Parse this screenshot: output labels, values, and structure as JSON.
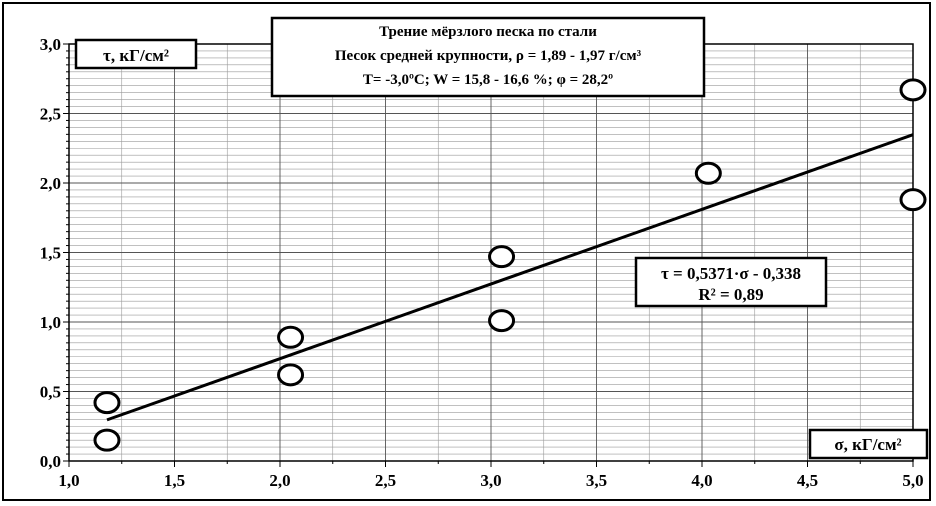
{
  "chart_data": {
    "type": "scatter",
    "title": "Трение мёрзлого песка по стали",
    "subtitle_line1": "Песок средней крупности, ρ = 1,89 - 1,97 г/см³",
    "subtitle_line2": "T= -3,0ºC; W = 15,8 - 16,6 %; φ = 28,2º",
    "xlabel": "σ, кГ/см²",
    "ylabel": "τ, кГ/см²",
    "xlim": [
      1.0,
      5.0
    ],
    "ylim": [
      0.0,
      3.0
    ],
    "x_ticks": [
      "1,0",
      "1,5",
      "2,0",
      "2,5",
      "3,0",
      "3,5",
      "4,0",
      "4,5",
      "5,0"
    ],
    "y_ticks": [
      "0,0",
      "0,5",
      "1,0",
      "1,5",
      "2,0",
      "2,5",
      "3,0"
    ],
    "grid": true,
    "points": [
      {
        "x": 1.18,
        "y": 0.42
      },
      {
        "x": 1.18,
        "y": 0.15
      },
      {
        "x": 2.05,
        "y": 0.89
      },
      {
        "x": 2.05,
        "y": 0.62
      },
      {
        "x": 3.05,
        "y": 1.47
      },
      {
        "x": 3.05,
        "y": 1.01
      },
      {
        "x": 4.03,
        "y": 2.07
      },
      {
        "x": 5.0,
        "y": 2.67
      },
      {
        "x": 5.0,
        "y": 1.88
      }
    ],
    "trendline": {
      "slope": 0.5371,
      "intercept": -0.338,
      "x_range": [
        1.18,
        5.0
      ],
      "equation": "τ = 0,5371·σ - 0,338",
      "r2": "R² = 0,89"
    }
  }
}
